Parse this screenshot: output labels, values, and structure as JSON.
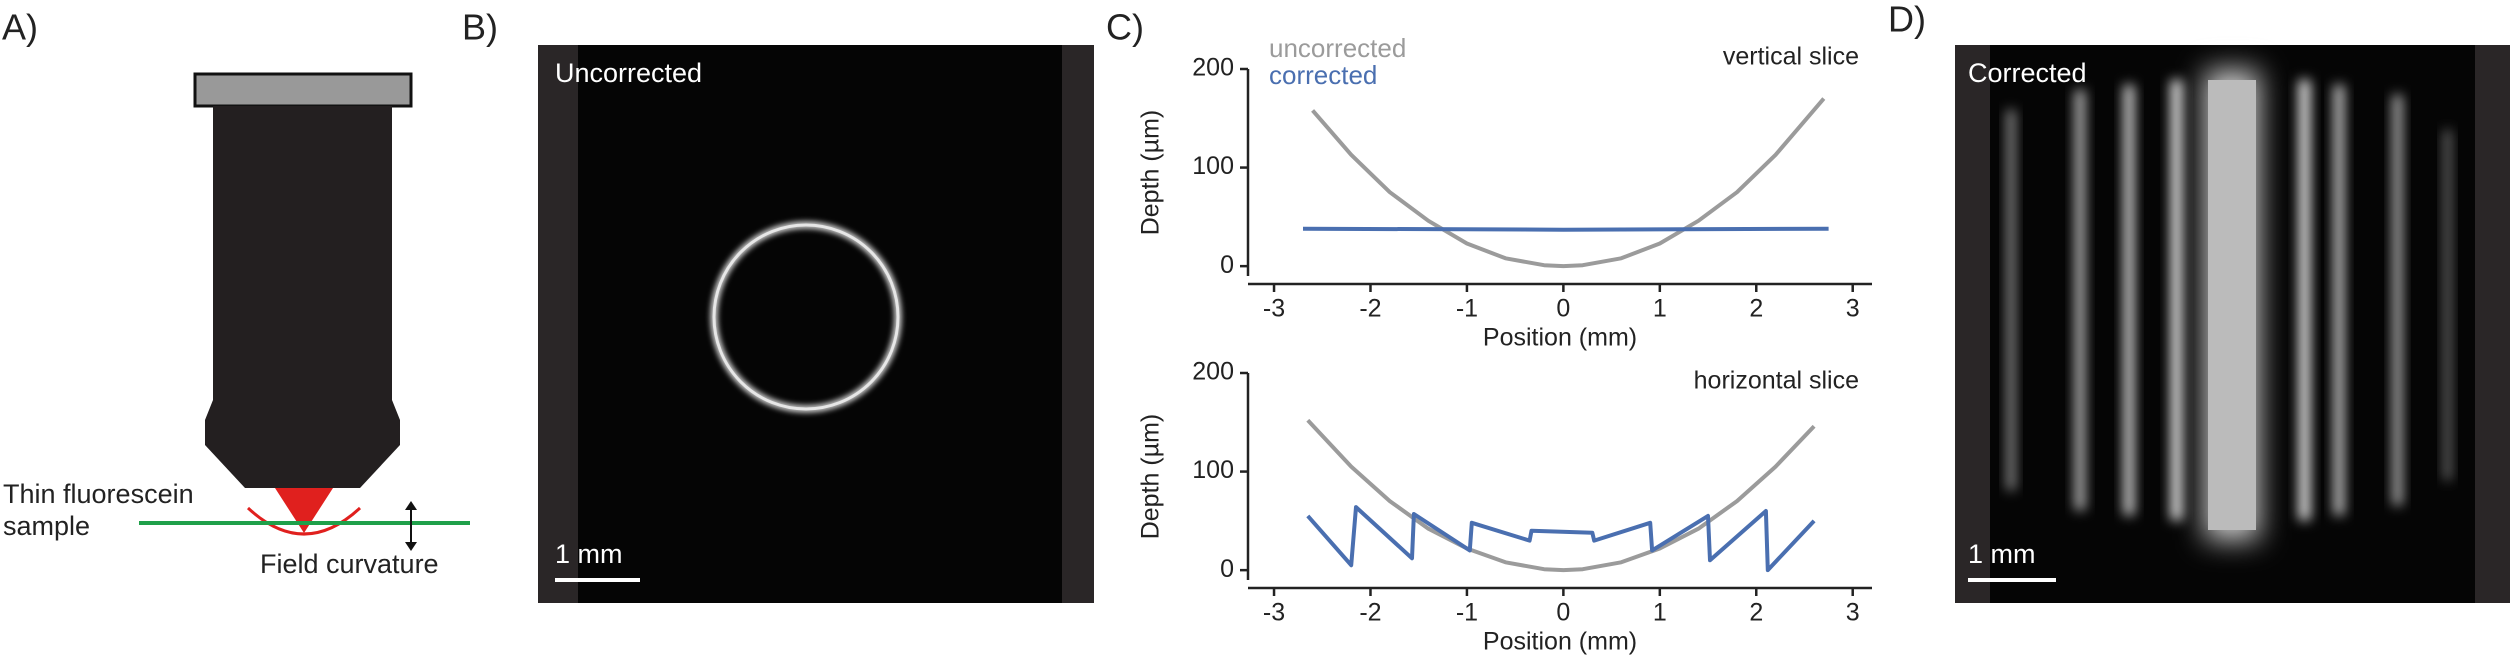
{
  "figure": {
    "panel_labels": [
      "A)",
      "B)",
      "C)",
      "D)"
    ],
    "a": {
      "sample_label": [
        "Thin fluorescein",
        "sample"
      ],
      "curvature_label": "Field curvature"
    },
    "b": {
      "title": "Uncorrected",
      "scale_bar": "1 mm"
    },
    "d": {
      "title": "Corrected",
      "scale_bar": "1 mm"
    }
  },
  "chart_data": [
    {
      "type": "line",
      "annotation": "vertical slice",
      "x_label": "Position (mm)",
      "y_label": "Depth (µm)",
      "xlim": [
        -3.27,
        3.2
      ],
      "ylim": [
        -10,
        200
      ],
      "xticks": [
        -3,
        -2,
        -1,
        0,
        1,
        2,
        3
      ],
      "yticks": [
        0,
        100,
        200
      ],
      "series": [
        {
          "name": "uncorrected",
          "color": "#9b9b9b",
          "x": [
            -2.6,
            -2.2,
            -1.8,
            -1.4,
            -1,
            -0.6,
            -0.2,
            0,
            0.2,
            0.6,
            1,
            1.4,
            1.8,
            2.2,
            2.7
          ],
          "values": [
            158,
            113,
            75,
            46,
            23,
            8,
            1,
            0,
            1,
            8,
            23,
            46,
            75,
            113,
            170
          ]
        },
        {
          "name": "corrected",
          "color": "#4a6fb0",
          "x": [
            -2.7,
            0,
            2.75
          ],
          "values": [
            38,
            37,
            38
          ]
        }
      ]
    },
    {
      "type": "line",
      "annotation": "horizontal slice",
      "x_label": "Position (mm)",
      "y_label": "Depth (µm)",
      "xlim": [
        -3.27,
        3.2
      ],
      "ylim": [
        -10,
        200
      ],
      "xticks": [
        -3,
        -2,
        -1,
        0,
        1,
        2,
        3
      ],
      "yticks": [
        0,
        100,
        200
      ],
      "series": [
        {
          "color": "#9b9b9b",
          "x": [
            -2.65,
            -2.2,
            -1.8,
            -1.4,
            -1,
            -0.6,
            -0.2,
            0,
            0.2,
            0.6,
            1,
            1.4,
            1.8,
            2.2,
            2.6
          ],
          "values": [
            152,
            105,
            70,
            42,
            22,
            8,
            1,
            0,
            1,
            8,
            22,
            42,
            70,
            105,
            146
          ]
        },
        {
          "color": "#4a6fb0",
          "x": [
            -2.65,
            -2.2,
            -2.15,
            -1.57,
            -1.55,
            -0.97,
            -0.95,
            -0.35,
            -0.33,
            0.3,
            0.32,
            0.9,
            0.92,
            1.5,
            1.52,
            2.1,
            2.12,
            2.6
          ],
          "values": [
            55,
            5,
            64,
            12,
            57,
            20,
            48,
            30,
            40,
            38,
            30,
            48,
            20,
            55,
            10,
            60,
            0,
            50
          ]
        }
      ]
    }
  ]
}
